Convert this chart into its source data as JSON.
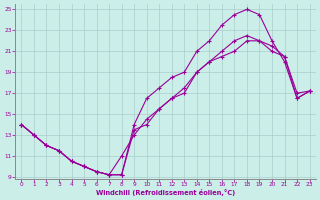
{
  "bg_color": "#cceee8",
  "grid_color": "#aacccc",
  "line_color": "#990099",
  "xlabel": "Windchill (Refroidissement éolien,°C)",
  "xlim": [
    0,
    23
  ],
  "ylim": [
    9,
    25
  ],
  "xticks": [
    0,
    1,
    2,
    3,
    4,
    5,
    6,
    7,
    8,
    9,
    10,
    11,
    12,
    13,
    14,
    15,
    16,
    17,
    18,
    19,
    20,
    21,
    22,
    23
  ],
  "yticks": [
    9,
    11,
    13,
    15,
    17,
    19,
    21,
    23,
    25
  ],
  "line1_x": [
    0,
    1,
    2,
    3,
    4,
    5,
    6,
    7,
    8,
    9,
    10,
    11,
    12,
    13,
    14,
    15,
    16,
    17,
    18,
    19,
    20,
    21,
    22,
    23
  ],
  "line1_y": [
    14,
    13,
    12,
    11.5,
    10.5,
    10,
    9.5,
    9.2,
    9.2,
    13.5,
    14,
    15.5,
    16.5,
    17,
    19,
    20,
    20.5,
    21,
    22,
    22,
    21,
    20.5,
    16.5,
    17.2
  ],
  "line2_x": [
    0,
    1,
    2,
    3,
    4,
    5,
    6,
    7,
    8,
    9,
    10,
    11,
    12,
    13,
    14,
    15,
    16,
    17,
    18,
    19,
    20,
    21,
    22,
    23
  ],
  "line2_y": [
    14,
    13,
    12,
    11.5,
    10.5,
    10,
    9.5,
    9.2,
    9.2,
    14,
    16.5,
    17.5,
    18.5,
    19,
    21,
    22,
    23.5,
    24.5,
    25,
    24.5,
    22,
    20,
    16.5,
    17.2
  ],
  "line3_x": [
    0,
    1,
    2,
    3,
    4,
    5,
    6,
    7,
    8,
    9,
    10,
    11,
    12,
    13,
    14,
    15,
    16,
    17,
    18,
    19,
    20,
    21,
    22,
    23
  ],
  "line3_y": [
    14,
    13,
    12,
    11.5,
    10.5,
    10,
    9.5,
    9.2,
    11,
    13,
    14.5,
    15.5,
    16.5,
    17.5,
    19,
    20,
    21,
    22,
    22.5,
    22,
    21.5,
    20.5,
    17,
    17.2
  ]
}
